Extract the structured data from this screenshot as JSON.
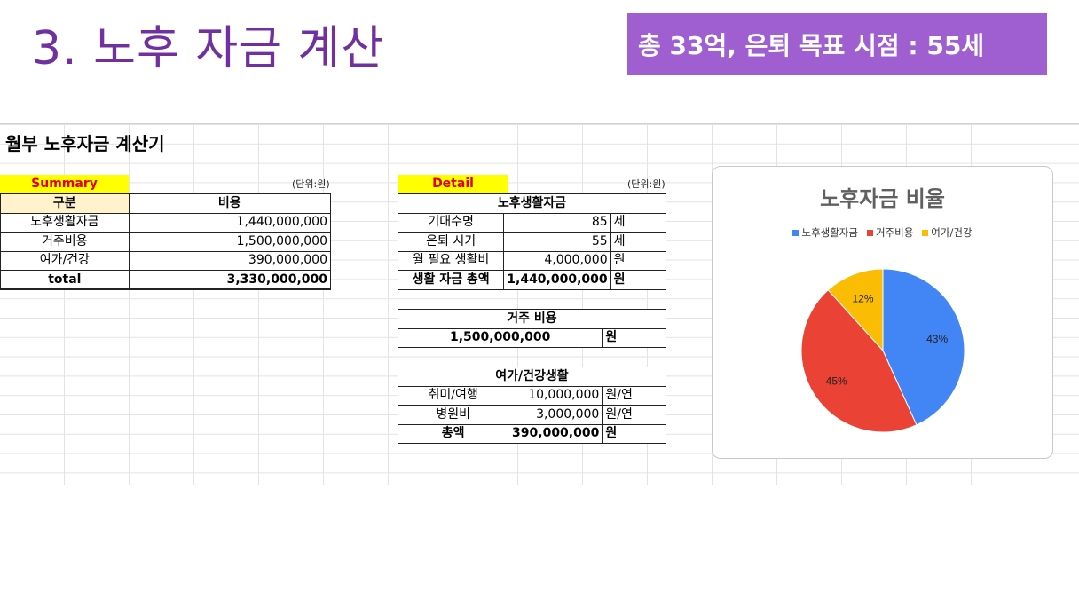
{
  "slide": {
    "title": "3. 노후 자금 계산",
    "goal_banner": "총 33억, 은퇴 목표 시점 : 55세"
  },
  "sheet": {
    "title": "월부 노후자금 계산기",
    "summary": {
      "tag": "Summary",
      "unit": "(단위:원)",
      "headers": [
        "구분",
        "비용"
      ],
      "rows": [
        {
          "label": "노후생활자금",
          "value": "1,440,000,000"
        },
        {
          "label": "거주비용",
          "value": "1,500,000,000"
        },
        {
          "label": "여가/건강",
          "value": "390,000,000"
        }
      ],
      "total": {
        "label": "total",
        "value": "3,330,000,000"
      }
    },
    "detail": {
      "tag": "Detail",
      "unit": "(단위:원)",
      "living": {
        "header": "노후생활자금",
        "rows": [
          {
            "label": "기대수명",
            "value": "85",
            "unit": "세"
          },
          {
            "label": "은퇴 시기",
            "value": "55",
            "unit": "세"
          },
          {
            "label": "월 필요 생활비",
            "value": "4,000,000",
            "unit": "원"
          }
        ],
        "total": {
          "label": "생활 자금 총액",
          "value": "1,440,000,000",
          "unit": "원"
        }
      },
      "housing": {
        "header": "거주 비용",
        "value": "1,500,000,000",
        "unit": "원"
      },
      "leisure": {
        "header": "여가/건강생활",
        "rows": [
          {
            "label": "취미/여행",
            "value": "10,000,000",
            "unit": "원/연"
          },
          {
            "label": "병원비",
            "value": "3,000,000",
            "unit": "원/연"
          }
        ],
        "total": {
          "label": "총액",
          "value": "390,000,000",
          "unit": "원"
        }
      }
    }
  },
  "chart_data": {
    "type": "pie",
    "title": "노후자금 비율",
    "legend_position": "top",
    "categories": [
      "노후생활자금",
      "거주비용",
      "여가/건강"
    ],
    "values": [
      1440000000,
      1500000000,
      390000000
    ],
    "labels": [
      "43%",
      "45%",
      "12%"
    ],
    "colors": [
      "#4285f4",
      "#ea4335",
      "#fbbc04"
    ]
  }
}
